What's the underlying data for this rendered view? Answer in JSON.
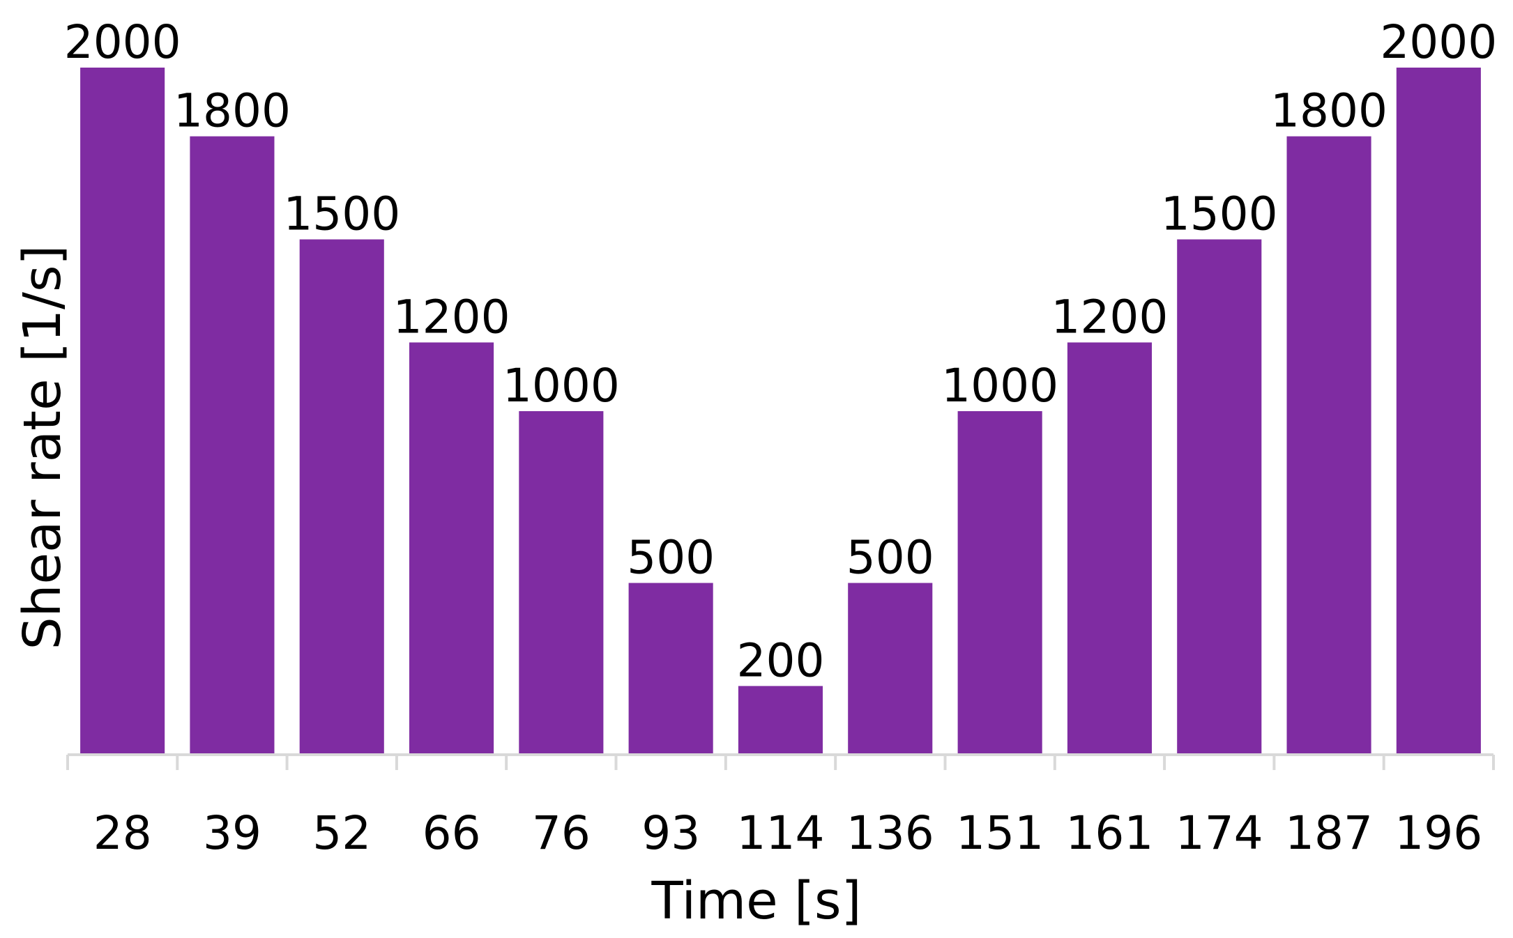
{
  "chart_data": {
    "type": "bar",
    "title": "",
    "xlabel": "Time [s]",
    "ylabel": "Shear rate [1/s]",
    "categories": [
      "28",
      "39",
      "52",
      "66",
      "76",
      "93",
      "114",
      "136",
      "151",
      "161",
      "174",
      "187",
      "196"
    ],
    "values": [
      2000,
      1800,
      1500,
      1200,
      1000,
      500,
      200,
      500,
      1000,
      1200,
      1500,
      1800,
      2000
    ],
    "ylim": [
      0,
      2000
    ],
    "grid": false,
    "legend": "none",
    "data_labels": true,
    "bar_color": "#7F2CA2",
    "axis_color": "#D9D9D9"
  }
}
